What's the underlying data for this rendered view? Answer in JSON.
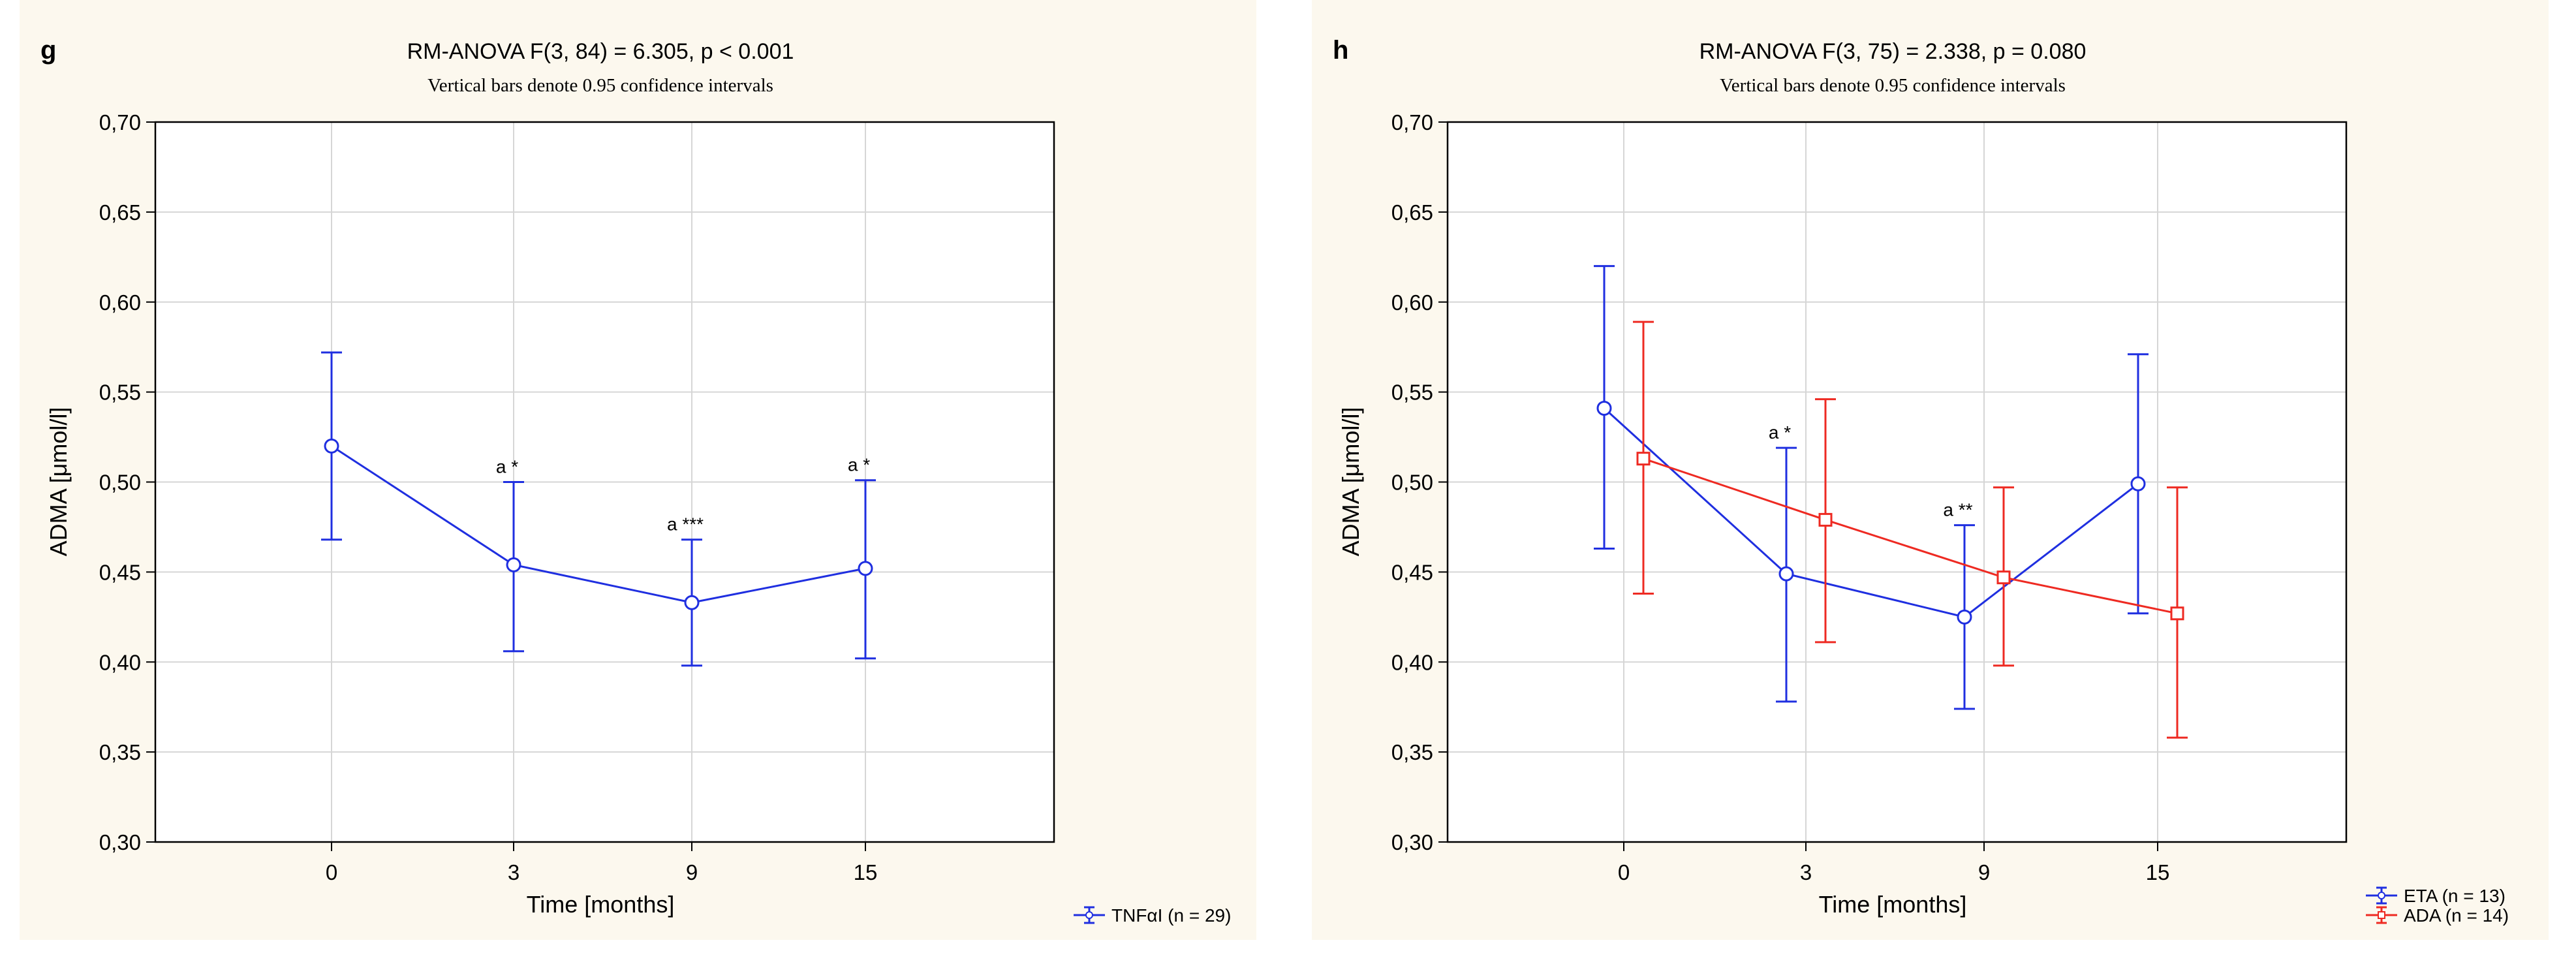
{
  "colors": {
    "blue": "#1f2fe0",
    "red": "#ee2a22",
    "panel_bg": "#fcf8ee",
    "grid": "#d6d6d6",
    "axis": "#000000"
  },
  "chart_data": [
    {
      "type": "line",
      "panel_label": "g",
      "title": "RM-ANOVA F(3, 84) = 6.305, p < 0.001",
      "subtitle": "Vertical bars denote 0.95 confidence intervals",
      "xlabel": "Time [months]",
      "ylabel": "ADMA [μmol/l]",
      "categories": [
        "0",
        "3",
        "9",
        "15"
      ],
      "ylim": [
        0.3,
        0.7
      ],
      "yticks": [
        "0,70",
        "0,65",
        "0,60",
        "0,55",
        "0,50",
        "0,45",
        "0,40",
        "0,35",
        "0,30"
      ],
      "ytick_values": [
        0.7,
        0.65,
        0.6,
        0.55,
        0.5,
        0.45,
        0.4,
        0.35,
        0.3
      ],
      "grid": true,
      "legend_position": "bottom-right",
      "series": [
        {
          "name": "TNFαI (n = 29)",
          "color": "#1f2fe0",
          "marker": "circle",
          "values": [
            0.52,
            0.454,
            0.433,
            0.452
          ],
          "ci_low": [
            0.468,
            0.406,
            0.398,
            0.402
          ],
          "ci_high": [
            0.572,
            0.5,
            0.468,
            0.501
          ],
          "annotations": [
            "",
            "a *",
            "a ***",
            "a *"
          ]
        }
      ]
    },
    {
      "type": "line",
      "panel_label": "h",
      "title": "RM-ANOVA F(3, 75) = 2.338, p = 0.080",
      "subtitle": "Vertical bars denote 0.95 confidence intervals",
      "xlabel": "Time [months]",
      "ylabel": "ADMA [μmol/l]",
      "categories": [
        "0",
        "3",
        "9",
        "15"
      ],
      "ylim": [
        0.3,
        0.7
      ],
      "yticks": [
        "0,70",
        "0,65",
        "0,60",
        "0,55",
        "0,50",
        "0,45",
        "0,40",
        "0,35",
        "0,30"
      ],
      "ytick_values": [
        0.7,
        0.65,
        0.6,
        0.55,
        0.5,
        0.45,
        0.4,
        0.35,
        0.3
      ],
      "grid": true,
      "legend_position": "bottom-right",
      "series": [
        {
          "name": "ETA (n = 13)",
          "color": "#1f2fe0",
          "marker": "circle",
          "values": [
            0.541,
            0.449,
            0.425,
            0.499
          ],
          "ci_low": [
            0.463,
            0.378,
            0.374,
            0.427
          ],
          "ci_high": [
            0.62,
            0.519,
            0.476,
            0.571
          ],
          "annotations": [
            "",
            "a *",
            "a **",
            ""
          ]
        },
        {
          "name": "ADA (n = 14)",
          "color": "#ee2a22",
          "marker": "square",
          "values": [
            0.513,
            0.479,
            0.447,
            0.427
          ],
          "ci_low": [
            0.438,
            0.411,
            0.398,
            0.358
          ],
          "ci_high": [
            0.589,
            0.546,
            0.497,
            0.497
          ],
          "annotations": [
            "",
            "",
            "",
            ""
          ]
        }
      ]
    }
  ]
}
